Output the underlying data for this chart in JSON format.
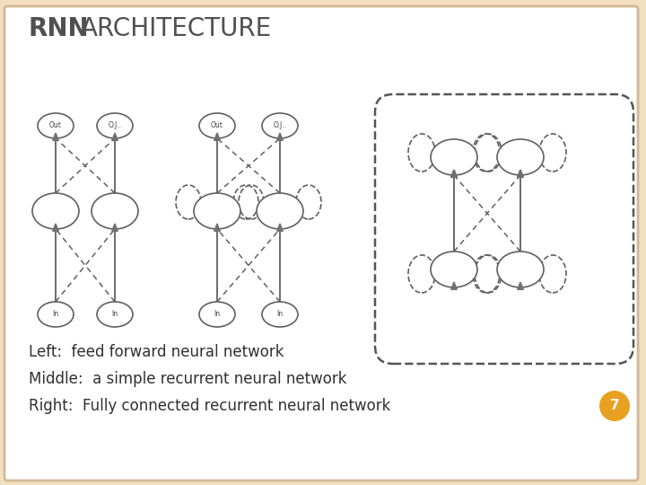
{
  "title_rnn": "RNN",
  "title_arch": "ARCHITECTURE",
  "bg_color": "#ffffff",
  "border_color": "#d4b896",
  "slide_bg": "#f0dfc0",
  "node_edge_color": "#606060",
  "arrow_color": "#707070",
  "caption_lines": [
    "Left:  feed forward neural network",
    "Middle:  a simple recurrent neural network",
    "Right:  Fully connected recurrent neural network"
  ],
  "page_num": "7",
  "page_circle_color": "#e8a020"
}
